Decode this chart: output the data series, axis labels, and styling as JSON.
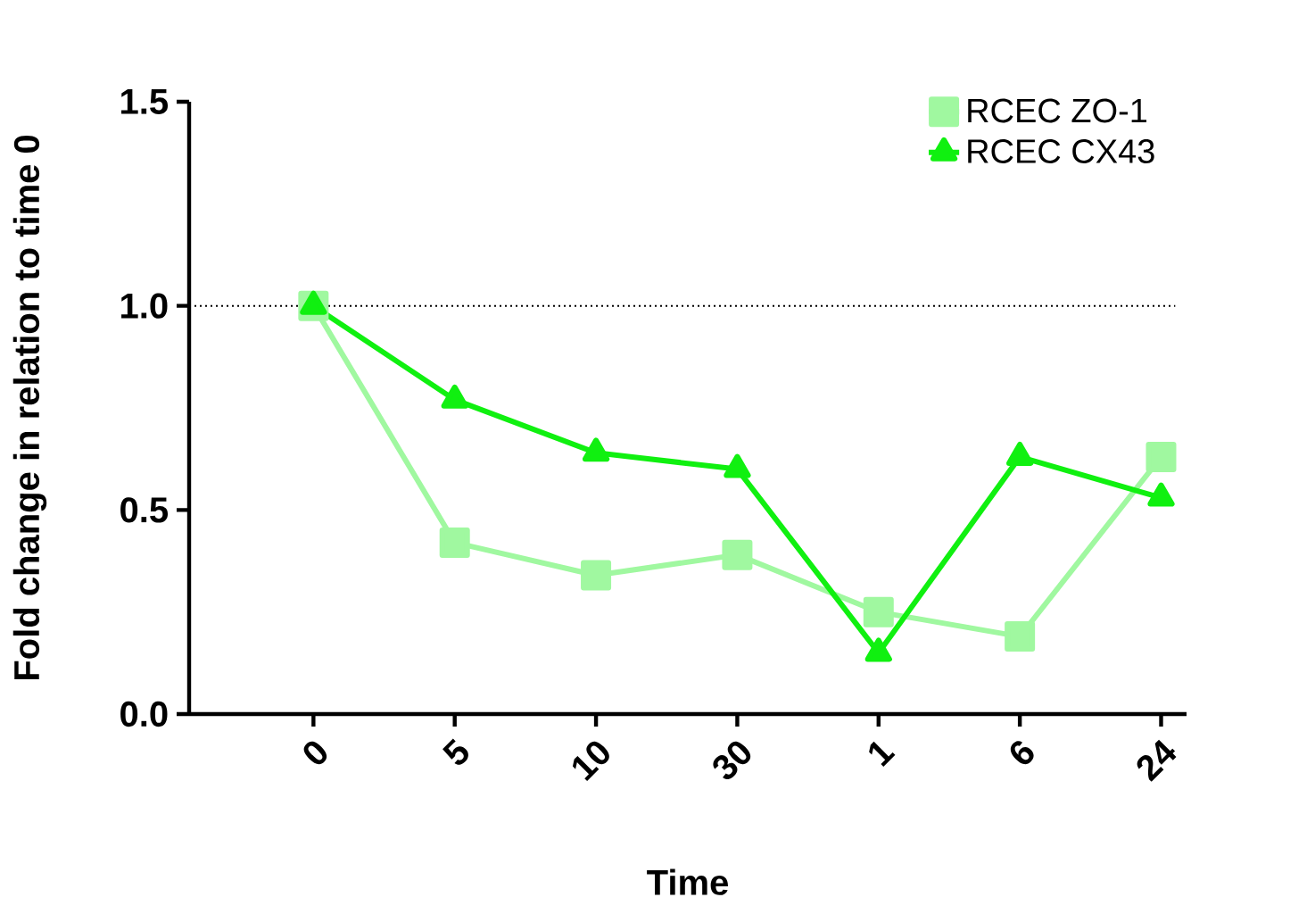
{
  "chart_data": {
    "type": "line",
    "xlabel": "Time",
    "ylabel": "Fold change in relation to time 0",
    "categories": [
      "0",
      "5",
      "10",
      "30",
      "1",
      "6",
      "24"
    ],
    "series": [
      {
        "name": "RCEC ZO-1",
        "color": "#a0f8a0",
        "marker": "square",
        "values": [
          1.0,
          0.42,
          0.34,
          0.39,
          0.25,
          0.19,
          0.63
        ]
      },
      {
        "name": "RCEC CX43",
        "color": "#10f010",
        "marker": "triangle",
        "values": [
          1.0,
          0.77,
          0.64,
          0.6,
          0.15,
          0.63,
          0.53
        ]
      }
    ],
    "ylim": [
      0,
      1.5
    ],
    "yticks": [
      {
        "value": 0,
        "label": "0.0"
      },
      {
        "value": 0.5,
        "label": "0.5"
      },
      {
        "value": 1.0,
        "label": "1.0"
      },
      1.5
    ],
    "ref_lines": [
      {
        "axis": "y",
        "value": 1.0,
        "line_style": "dotted"
      }
    ],
    "legend": "top right",
    "grid": false,
    "line_style": "solid"
  }
}
